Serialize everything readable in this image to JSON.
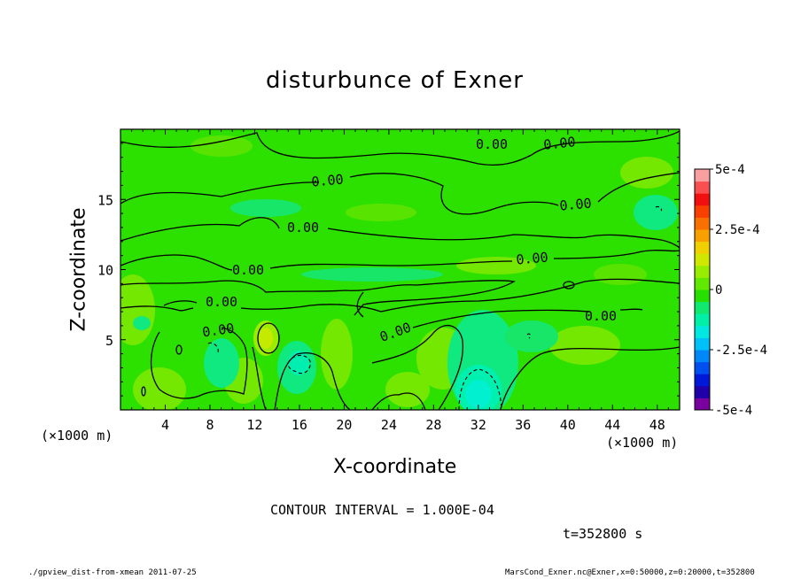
{
  "chart_data": {
    "type": "heatmap",
    "title": "disturbunce of Exner",
    "xlabel": "X-coordinate",
    "ylabel": "Z-coordinate",
    "x_unit_label": "(×1000 m)",
    "z_unit_label": "(×1000 m)",
    "xlim": [
      0,
      50
    ],
    "ylim": [
      0,
      20
    ],
    "x_ticks": [
      4,
      8,
      12,
      16,
      20,
      24,
      28,
      32,
      36,
      40,
      44,
      48
    ],
    "y_ticks": [
      5,
      10,
      15
    ],
    "contour_interval_text": "CONTOUR INTERVAL = 1.000E-04",
    "time_text": "t=352800 s",
    "contour_labels": [
      "0.00",
      "0.00",
      "0.00",
      "0.00",
      "0.00",
      "0.00",
      "0.00",
      "0.00",
      "0.00",
      "0.00"
    ],
    "colorbar": {
      "range": [
        -0.0005,
        0.0005
      ],
      "tick_labels": [
        "5e-4",
        "2.5e-4",
        "0",
        "-2.5e-4",
        "-5e-4"
      ],
      "tick_values": [
        0.0005,
        0.00025,
        0,
        -0.00025,
        -0.0005
      ],
      "colors": [
        "#7a00a0",
        "#2000a8",
        "#0018d8",
        "#0050f0",
        "#0088f8",
        "#00c0f8",
        "#00e8e0",
        "#00f0a8",
        "#10e870",
        "#28e000",
        "#60e800",
        "#98ec00",
        "#d0e800",
        "#f0d000",
        "#f8a000",
        "#f87000",
        "#f84000",
        "#f01010",
        "#f85050",
        "#f8a0a0"
      ]
    }
  },
  "footer": {
    "left": "./gpview_dist-from-xmean  2011-07-25",
    "right": "MarsCond_Exner.nc@Exner,x=0:50000,z=0:20000,t=352800"
  }
}
